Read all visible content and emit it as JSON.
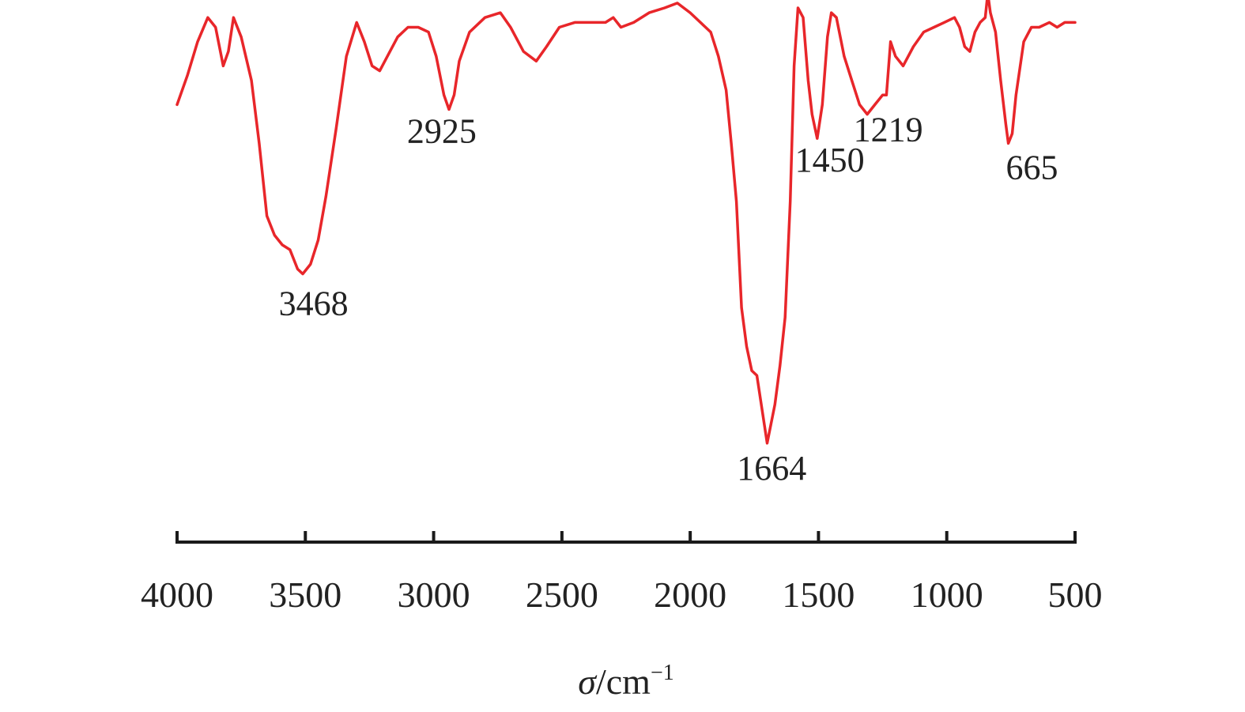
{
  "chart_data": {
    "type": "line",
    "xlabel_symbol": "σ",
    "xlabel_unit": "/cm",
    "xlabel_sup": "−1",
    "xlim": [
      4000,
      500
    ],
    "ylim": [
      0,
      100
    ],
    "x_ticks": [
      4000,
      3500,
      3000,
      2500,
      2000,
      1500,
      1000,
      500
    ],
    "x_tick_labels": [
      "4000",
      "3500",
      "3000",
      "2500",
      "2000",
      "1500",
      "1000",
      "500"
    ],
    "colors": {
      "line": "#e8262a",
      "axis": "#1a1a1a",
      "text": "#222222"
    },
    "series": [
      {
        "points": [
          [
            4000,
            80
          ],
          [
            3960,
            86
          ],
          [
            3920,
            93
          ],
          [
            3880,
            98
          ],
          [
            3850,
            96
          ],
          [
            3820,
            88
          ],
          [
            3800,
            91
          ],
          [
            3780,
            98
          ],
          [
            3750,
            94
          ],
          [
            3710,
            85
          ],
          [
            3680,
            72
          ],
          [
            3650,
            57
          ],
          [
            3620,
            53
          ],
          [
            3590,
            51
          ],
          [
            3560,
            50
          ],
          [
            3530,
            46
          ],
          [
            3510,
            45
          ],
          [
            3480,
            47
          ],
          [
            3450,
            52
          ],
          [
            3420,
            61
          ],
          [
            3380,
            75
          ],
          [
            3340,
            90
          ],
          [
            3300,
            97
          ],
          [
            3270,
            93
          ],
          [
            3240,
            88
          ],
          [
            3210,
            87
          ],
          [
            3180,
            90
          ],
          [
            3140,
            94
          ],
          [
            3100,
            96
          ],
          [
            3060,
            96
          ],
          [
            3020,
            95
          ],
          [
            2990,
            90
          ],
          [
            2960,
            82
          ],
          [
            2940,
            79
          ],
          [
            2920,
            82
          ],
          [
            2900,
            89
          ],
          [
            2860,
            95
          ],
          [
            2800,
            98
          ],
          [
            2740,
            99
          ],
          [
            2700,
            96
          ],
          [
            2650,
            91
          ],
          [
            2600,
            89
          ],
          [
            2560,
            92
          ],
          [
            2510,
            96
          ],
          [
            2450,
            97
          ],
          [
            2380,
            97
          ],
          [
            2330,
            97
          ],
          [
            2300,
            98
          ],
          [
            2270,
            96
          ],
          [
            2220,
            97
          ],
          [
            2160,
            99
          ],
          [
            2100,
            100
          ],
          [
            2050,
            101
          ],
          [
            2000,
            99
          ],
          [
            1960,
            97
          ],
          [
            1920,
            95
          ],
          [
            1890,
            90
          ],
          [
            1860,
            83
          ],
          [
            1840,
            72
          ],
          [
            1820,
            60
          ],
          [
            1800,
            38
          ],
          [
            1780,
            30
          ],
          [
            1760,
            25
          ],
          [
            1740,
            24
          ],
          [
            1720,
            17
          ],
          [
            1700,
            10
          ],
          [
            1685,
            14
          ],
          [
            1670,
            18
          ],
          [
            1650,
            26
          ],
          [
            1630,
            36
          ],
          [
            1610,
            60
          ],
          [
            1595,
            88
          ],
          [
            1580,
            100
          ],
          [
            1560,
            98
          ],
          [
            1540,
            85
          ],
          [
            1525,
            78
          ],
          [
            1505,
            73
          ],
          [
            1485,
            80
          ],
          [
            1465,
            94
          ],
          [
            1450,
            99
          ],
          [
            1430,
            98
          ],
          [
            1400,
            90
          ],
          [
            1370,
            85
          ],
          [
            1340,
            80
          ],
          [
            1310,
            78
          ],
          [
            1280,
            80
          ],
          [
            1250,
            82
          ],
          [
            1235,
            82
          ],
          [
            1219,
            93
          ],
          [
            1200,
            90
          ],
          [
            1170,
            88
          ],
          [
            1130,
            92
          ],
          [
            1090,
            95
          ],
          [
            1050,
            96
          ],
          [
            1010,
            97
          ],
          [
            970,
            98
          ],
          [
            950,
            96
          ],
          [
            930,
            92
          ],
          [
            910,
            91
          ],
          [
            890,
            95
          ],
          [
            870,
            97
          ],
          [
            850,
            98
          ],
          [
            840,
            103
          ],
          [
            830,
            99
          ],
          [
            810,
            95
          ],
          [
            790,
            85
          ],
          [
            770,
            76
          ],
          [
            760,
            72
          ],
          [
            745,
            74
          ],
          [
            730,
            82
          ],
          [
            700,
            93
          ],
          [
            670,
            96
          ],
          [
            640,
            96
          ],
          [
            600,
            97
          ],
          [
            570,
            96
          ],
          [
            540,
            97
          ],
          [
            520,
            97
          ],
          [
            500,
            97
          ]
        ]
      }
    ],
    "annotations": [
      {
        "text": "3468",
        "x": 3468,
        "y": 45
      },
      {
        "text": "2925",
        "x": 2925,
        "y": 79
      },
      {
        "text": "1664",
        "x": 1664,
        "y": 10
      },
      {
        "text": "1450",
        "x": 1450,
        "y": 73
      },
      {
        "text": "1219",
        "x": 1219,
        "y": 78
      },
      {
        "text": "665",
        "x": 665,
        "y": 72
      }
    ],
    "grid": false,
    "legend": "none"
  }
}
